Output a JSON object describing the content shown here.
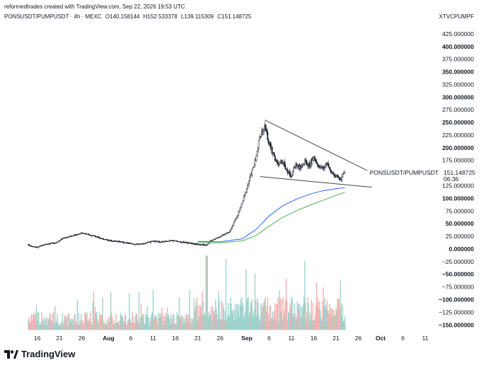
{
  "header": {
    "attribution": "reformedtrades created with TradingView.com, Sep 22, 2026 19:53 UTC",
    "symbol_line": "PONSUSDT/PUMPUSDT · 4h · MEXC",
    "open": "O140.158144",
    "high": "H152.533378",
    "low": "L139.115309",
    "close": "C151.148725",
    "exchange_code": "XTVCPUMPF"
  },
  "price_label": {
    "symbol": "PONSUSDT/PUMPUSDT",
    "value": "151.148725",
    "countdown": "06:36"
  },
  "footer": {
    "logo_text": "TradingView"
  },
  "colors": {
    "candle": "#131722",
    "ma_blue": "#2962ff",
    "ma_green": "#4caf50",
    "volume_up": "#9ed2cd",
    "volume_down": "#f2b3b0",
    "trendline": "#434651"
  },
  "chart_data": {
    "type": "candlestick",
    "timeframe": "4h",
    "y_axis": {
      "range": [
        -165,
        450
      ],
      "ticks": [
        {
          "value": 425,
          "label": "425.000000",
          "bold": false
        },
        {
          "value": 400,
          "label": "400.000000",
          "bold": true
        },
        {
          "value": 375,
          "label": "375.000000",
          "bold": false
        },
        {
          "value": 350,
          "label": "350.000000",
          "bold": true
        },
        {
          "value": 325,
          "label": "325.000000",
          "bold": false
        },
        {
          "value": 300,
          "label": "300.000000",
          "bold": true
        },
        {
          "value": 275,
          "label": "275.000000",
          "bold": false
        },
        {
          "value": 250,
          "label": "250.000000",
          "bold": true
        },
        {
          "value": 225,
          "label": "225.000000",
          "bold": false
        },
        {
          "value": 200,
          "label": "200.000000",
          "bold": true
        },
        {
          "value": 175,
          "label": "175.000000",
          "bold": false
        },
        {
          "value": 125,
          "label": "125.000000",
          "bold": false
        },
        {
          "value": 100,
          "label": "100.000000",
          "bold": true
        },
        {
          "value": 75,
          "label": "75.000000",
          "bold": false
        },
        {
          "value": 50,
          "label": "50.000000",
          "bold": true
        },
        {
          "value": 25,
          "label": "25.000000",
          "bold": false
        },
        {
          "value": 0,
          "label": "0.000000",
          "bold": true
        },
        {
          "value": -25,
          "label": "−25.000000",
          "bold": false
        },
        {
          "value": -50,
          "label": "−50.000000",
          "bold": true
        },
        {
          "value": -75,
          "label": "−75.000000",
          "bold": false
        },
        {
          "value": -100,
          "label": "−100.000000",
          "bold": true
        },
        {
          "value": -125,
          "label": "−125.000000",
          "bold": false
        },
        {
          "value": -150,
          "label": "−150.000000",
          "bold": true
        }
      ]
    },
    "x_axis": {
      "range": [
        "Jul 14",
        "Oct 14"
      ],
      "ticks": [
        {
          "date": "Jul 16",
          "label": "16",
          "bold": false
        },
        {
          "date": "Jul 21",
          "label": "21",
          "bold": false
        },
        {
          "date": "Jul 26",
          "label": "26",
          "bold": false
        },
        {
          "date": "Aug 1",
          "label": "Aug",
          "bold": true
        },
        {
          "date": "Aug 6",
          "label": "6",
          "bold": false
        },
        {
          "date": "Aug 11",
          "label": "11",
          "bold": false
        },
        {
          "date": "Aug 16",
          "label": "16",
          "bold": false
        },
        {
          "date": "Aug 21",
          "label": "21",
          "bold": false
        },
        {
          "date": "Aug 26",
          "label": "26",
          "bold": false
        },
        {
          "date": "Sep 1",
          "label": "Sep",
          "bold": true
        },
        {
          "date": "Sep 6",
          "label": "6",
          "bold": false
        },
        {
          "date": "Sep 11",
          "label": "11",
          "bold": false
        },
        {
          "date": "Sep 16",
          "label": "16",
          "bold": false
        },
        {
          "date": "Sep 21",
          "label": "21",
          "bold": false
        },
        {
          "date": "Sep 26",
          "label": "26",
          "bold": false
        },
        {
          "date": "Oct 1",
          "label": "Oct",
          "bold": true
        },
        {
          "date": "Oct 6",
          "label": "6",
          "bold": false
        },
        {
          "date": "Oct 11",
          "label": "11",
          "bold": false
        }
      ]
    },
    "price_path": [
      [
        "Jul 14",
        8
      ],
      [
        "Jul 16",
        3
      ],
      [
        "Jul 18",
        10
      ],
      [
        "Jul 20",
        12
      ],
      [
        "Jul 22",
        22
      ],
      [
        "Jul 24",
        26
      ],
      [
        "Jul 26",
        32
      ],
      [
        "Jul 28",
        27
      ],
      [
        "Jul 30",
        22
      ],
      [
        "Aug 1",
        17
      ],
      [
        "Aug 3",
        15
      ],
      [
        "Aug 5",
        12
      ],
      [
        "Aug 7",
        9
      ],
      [
        "Aug 9",
        11
      ],
      [
        "Aug 11",
        15
      ],
      [
        "Aug 13",
        14
      ],
      [
        "Aug 15",
        17
      ],
      [
        "Aug 17",
        14
      ],
      [
        "Aug 19",
        12
      ],
      [
        "Aug 21",
        9
      ],
      [
        "Aug 23",
        8
      ],
      [
        "Aug 24",
        17
      ],
      [
        "Aug 26",
        25
      ],
      [
        "Aug 28",
        33
      ],
      [
        "Aug 29",
        50
      ],
      [
        "Aug 30",
        68
      ],
      [
        "Aug 31",
        92
      ],
      [
        "Sep 1",
        120
      ],
      [
        "Sep 2",
        150
      ],
      [
        "Sep 3",
        175
      ],
      [
        "Sep 4",
        225
      ],
      [
        "Sep 5",
        240
      ],
      [
        "Sep 6",
        210
      ],
      [
        "Sep 7",
        185
      ],
      [
        "Sep 8",
        165
      ],
      [
        "Sep 9",
        175
      ],
      [
        "Sep 10",
        155
      ],
      [
        "Sep 11",
        145
      ],
      [
        "Sep 12",
        168
      ],
      [
        "Sep 13",
        160
      ],
      [
        "Sep 14",
        172
      ],
      [
        "Sep 15",
        165
      ],
      [
        "Sep 16",
        178
      ],
      [
        "Sep 17",
        165
      ],
      [
        "Sep 18",
        160
      ],
      [
        "Sep 19",
        168
      ],
      [
        "Sep 20",
        148
      ],
      [
        "Sep 21",
        145
      ],
      [
        "Sep 22",
        138
      ],
      [
        "Sep 23",
        151
      ]
    ],
    "ma_blue": [
      [
        "Aug 21",
        15
      ],
      [
        "Aug 26",
        14
      ],
      [
        "Aug 31",
        20
      ],
      [
        "Sep 3",
        38
      ],
      [
        "Sep 6",
        65
      ],
      [
        "Sep 9",
        85
      ],
      [
        "Sep 12",
        98
      ],
      [
        "Sep 15",
        108
      ],
      [
        "Sep 18",
        115
      ],
      [
        "Sep 21",
        119
      ],
      [
        "Sep 23",
        121
      ]
    ],
    "ma_green": [
      [
        "Aug 21",
        13
      ],
      [
        "Aug 26",
        12
      ],
      [
        "Aug 31",
        16
      ],
      [
        "Sep 3",
        26
      ],
      [
        "Sep 6",
        45
      ],
      [
        "Sep 9",
        62
      ],
      [
        "Sep 12",
        75
      ],
      [
        "Sep 15",
        86
      ],
      [
        "Sep 18",
        96
      ],
      [
        "Sep 21",
        106
      ],
      [
        "Sep 23",
        112
      ]
    ],
    "trendlines": [
      {
        "name": "upper",
        "start": [
          "Sep 5",
          255
        ],
        "end": [
          "Sep 28",
          155
        ]
      },
      {
        "name": "lower",
        "start": [
          "Sep 4",
          143
        ],
        "end": [
          "Sep 29",
          122
        ]
      }
    ],
    "last_price": 151.148725
  }
}
